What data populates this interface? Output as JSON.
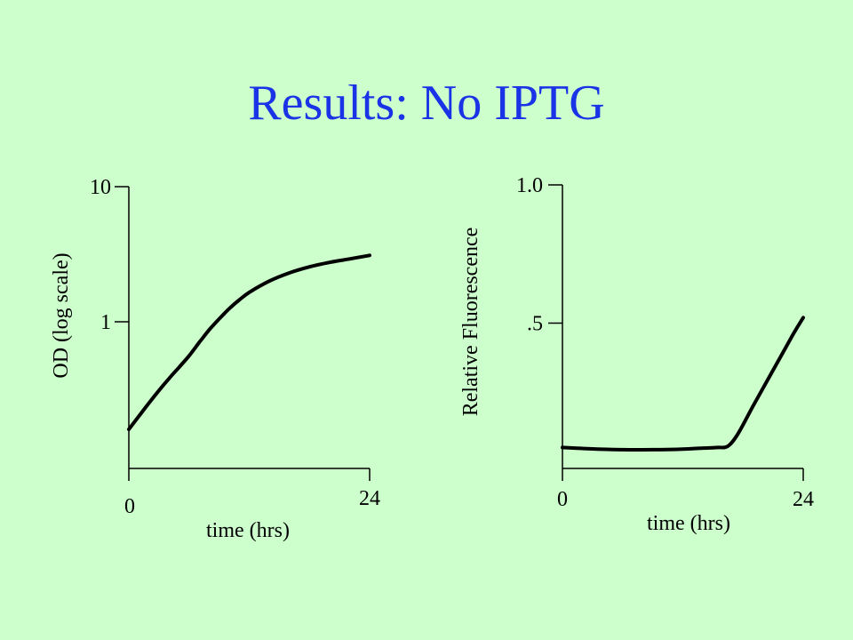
{
  "slide": {
    "title": "Results: No IPTG"
  },
  "colors": {
    "background": "#ccffcc",
    "title": "#1a33e6",
    "curve": "#000000"
  },
  "chart_data": [
    {
      "type": "line",
      "title": "",
      "xlabel": "time (hrs)",
      "ylabel": "OD (log scale)",
      "xlim": [
        0,
        24
      ],
      "ylim": [
        0.1,
        10
      ],
      "yscale": "log",
      "xticks": [
        0,
        24
      ],
      "xtick_labels": [
        "0",
        "24"
      ],
      "yticks": [
        1,
        10
      ],
      "ytick_labels": [
        "1",
        "10"
      ],
      "grid": false,
      "series": [
        {
          "x": [
            0,
            1,
            2,
            3,
            4,
            5,
            6,
            7,
            8,
            9,
            10,
            11,
            12,
            14,
            16,
            18,
            20,
            22,
            24
          ],
          "y": [
            0.16,
            0.2,
            0.25,
            0.31,
            0.38,
            0.46,
            0.56,
            0.7,
            0.87,
            1.05,
            1.25,
            1.45,
            1.65,
            2.0,
            2.3,
            2.55,
            2.75,
            2.92,
            3.1
          ]
        }
      ]
    },
    {
      "type": "line",
      "title": "",
      "xlabel": "time (hrs)",
      "ylabel": "Relative Fluorescence",
      "xlim": [
        0,
        24
      ],
      "ylim": [
        0,
        1.0
      ],
      "xticks": [
        0,
        24
      ],
      "xtick_labels": [
        "0",
        "24"
      ],
      "yticks": [
        0.5,
        1.0
      ],
      "ytick_labels": [
        ".5",
        "1.0"
      ],
      "grid": false,
      "series": [
        {
          "x": [
            0,
            3,
            6,
            9,
            12,
            14,
            15.5,
            16.5,
            17.5,
            19,
            21,
            23,
            24
          ],
          "y": [
            0.05,
            0.045,
            0.042,
            0.042,
            0.044,
            0.048,
            0.05,
            0.055,
            0.1,
            0.2,
            0.33,
            0.46,
            0.52
          ]
        }
      ]
    }
  ]
}
